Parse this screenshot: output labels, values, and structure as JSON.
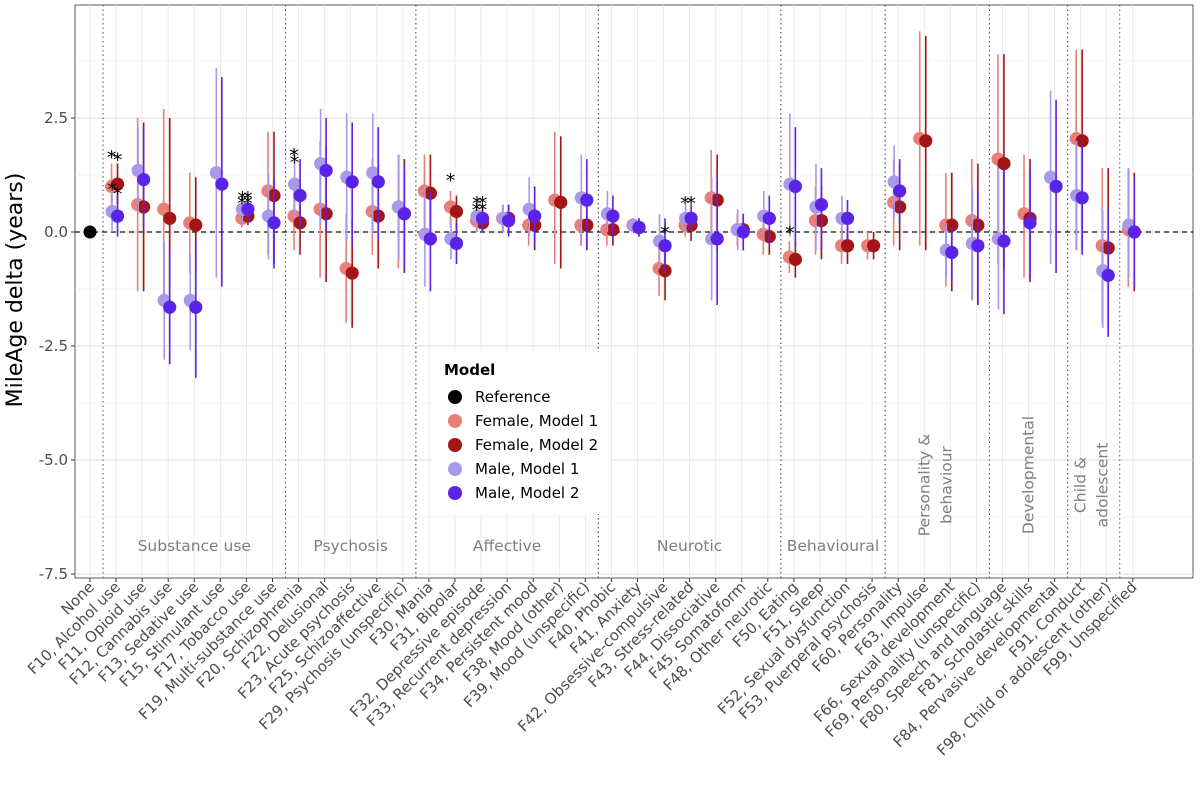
{
  "chart_data": {
    "type": "scatter",
    "ylabel": "MileAge delta (years)",
    "xlabel": "",
    "ylim": [
      -7.6,
      5.0
    ],
    "yticks": [
      2.5,
      0.0,
      -2.5,
      -5.0,
      -7.5
    ],
    "ytick_labels": [
      "2.5",
      "0.0",
      "-2.5",
      "-5.0",
      "-7.5"
    ],
    "grid": true,
    "reference_line": 0,
    "categories": [
      "None",
      "F10, Alcohol use",
      "F11, Opioid use",
      "F12, Cannabis use",
      "F13, Sedative use",
      "F15, Stimulant use",
      "F17, Tobacco use",
      "F19, Multi-substance use",
      "F20, Schizophrenia",
      "F22, Delusional",
      "F23, Acute psychosis",
      "F25, Schizoaffective",
      "F29, Psychosis (unspecific)",
      "F30, Mania",
      "F31, Bipolar",
      "F32, Depressive episode",
      "F33, Recurrent depression",
      "F34, Persistent mood",
      "F38, Mood (other)",
      "F39, Mood (unspecific)",
      "F40, Phobic",
      "F41, Anxiety",
      "F42, Obsessive-compulsive",
      "F43, Stress-related",
      "F44, Dissociative",
      "F45, Somatoform",
      "F48, Other neurotic",
      "F50, Eating",
      "F51, Sleep",
      "F52, Sexual dysfunction",
      "F53, Puerperal psychosis",
      "F60, Personality",
      "F63, Impulse",
      "F66, Sexual development",
      "F69, Personality (unspecific)",
      "F80, Speech and language",
      "F81, Scholastic skills",
      "F84, Pervasive developmental",
      "F91, Conduct",
      "F98, Child or adolescent (other)",
      "F99, Unspecified"
    ],
    "groups": [
      {
        "label": "Substance use",
        "start": 1,
        "end": 7
      },
      {
        "label": "Psychosis",
        "start": 8,
        "end": 12
      },
      {
        "label": "Affective",
        "start": 13,
        "end": 19
      },
      {
        "label": "Neurotic",
        "start": 20,
        "end": 26
      },
      {
        "label": "Behavioural",
        "start": 27,
        "end": 30
      },
      {
        "label": "Personality & behaviour",
        "start": 31,
        "end": 34
      },
      {
        "label": "Developmental",
        "start": 35,
        "end": 37
      },
      {
        "label": "Child & adolescent",
        "start": 38,
        "end": 39
      }
    ],
    "reference": {
      "name": "Reference",
      "category": 0,
      "value": 0.0,
      "color": "#000000"
    },
    "series": [
      {
        "name": "Female, Model 1",
        "color": "#e8807a",
        "values": [
          null,
          1.0,
          0.6,
          0.5,
          0.2,
          null,
          0.3,
          0.9,
          0.35,
          0.5,
          -0.8,
          0.45,
          0.55,
          0.9,
          0.55,
          0.25,
          0.3,
          0.15,
          0.7,
          0.15,
          0.05,
          0.15,
          -0.8,
          0.15,
          0.75,
          0.05,
          -0.05,
          -0.55,
          0.25,
          -0.3,
          -0.3,
          0.65,
          2.05,
          0.15,
          0.25,
          1.6,
          0.4,
          null,
          2.05,
          -0.3,
          0.05
        ],
        "lower": [
          null,
          0.5,
          -1.3,
          -1.6,
          -0.9,
          null,
          0.1,
          -0.5,
          -0.4,
          -1.0,
          -2.0,
          -0.5,
          -0.8,
          0.1,
          0.1,
          0.0,
          0.0,
          -0.3,
          -0.7,
          -0.3,
          -0.3,
          0.0,
          -1.4,
          -0.1,
          -0.3,
          -0.3,
          -0.5,
          -0.9,
          -0.5,
          -0.7,
          -0.6,
          -0.3,
          -0.3,
          -1.2,
          -1.5,
          -0.7,
          -1.0,
          null,
          -0.4,
          -2.0,
          -1.2
        ],
        "upper": [
          null,
          1.5,
          2.5,
          2.7,
          1.3,
          null,
          0.6,
          2.2,
          1.0,
          2.0,
          0.4,
          1.6,
          1.7,
          1.7,
          0.9,
          0.5,
          0.6,
          0.6,
          2.2,
          0.6,
          0.4,
          0.3,
          -0.2,
          0.4,
          1.8,
          0.4,
          0.4,
          -0.2,
          1.0,
          0.1,
          0.0,
          1.6,
          4.4,
          1.3,
          1.6,
          3.9,
          1.7,
          null,
          4.0,
          1.4,
          1.4
        ]
      },
      {
        "name": "Female, Model 2",
        "color": "#a41515",
        "values": [
          null,
          1.05,
          0.55,
          0.3,
          0.15,
          null,
          0.35,
          0.8,
          0.2,
          0.4,
          -0.9,
          0.35,
          0.4,
          0.85,
          0.45,
          0.2,
          0.3,
          0.15,
          0.65,
          0.15,
          0.05,
          0.1,
          -0.85,
          0.15,
          0.7,
          0.05,
          -0.1,
          -0.6,
          0.25,
          -0.3,
          -0.3,
          0.55,
          2.0,
          0.15,
          0.15,
          1.5,
          0.3,
          null,
          2.0,
          -0.35,
          0.0
        ],
        "lower": [
          null,
          0.6,
          -1.3,
          -1.7,
          -0.9,
          null,
          0.15,
          -0.7,
          -0.5,
          -1.1,
          -2.1,
          -0.8,
          -0.9,
          0.0,
          0.0,
          0.0,
          0.0,
          -0.4,
          -0.8,
          -0.4,
          -0.3,
          -0.1,
          -1.5,
          -0.2,
          -0.4,
          -0.4,
          -0.5,
          -1.0,
          -0.6,
          -0.7,
          -0.6,
          -0.4,
          -0.4,
          -1.3,
          -1.6,
          -0.8,
          -1.1,
          null,
          -0.4,
          -2.1,
          -1.3
        ],
        "upper": [
          null,
          1.5,
          2.4,
          2.5,
          1.2,
          null,
          0.6,
          2.2,
          0.9,
          1.9,
          0.3,
          1.5,
          1.6,
          1.7,
          0.8,
          0.45,
          0.6,
          0.6,
          2.1,
          0.6,
          0.4,
          0.3,
          -0.2,
          0.4,
          1.7,
          0.4,
          0.3,
          -0.2,
          1.0,
          0.1,
          0.0,
          1.5,
          4.3,
          1.3,
          1.5,
          3.9,
          1.6,
          null,
          4.0,
          1.4,
          1.3
        ]
      },
      {
        "name": "Male, Model 1",
        "color": "#a99ae9",
        "values": [
          null,
          0.45,
          1.35,
          -1.5,
          -1.5,
          1.3,
          0.5,
          0.35,
          1.05,
          1.5,
          1.2,
          1.3,
          0.55,
          -0.05,
          -0.15,
          0.35,
          0.3,
          0.5,
          null,
          0.75,
          0.4,
          0.15,
          -0.2,
          0.3,
          -0.15,
          0.05,
          0.35,
          1.05,
          0.55,
          0.3,
          null,
          1.1,
          null,
          -0.4,
          -0.25,
          -0.15,
          null,
          1.2,
          0.8,
          -0.85,
          0.15
        ],
        "lower": [
          null,
          0.0,
          0.4,
          -2.8,
          -2.6,
          -1.0,
          0.2,
          -0.6,
          0.3,
          0.2,
          -0.2,
          0.0,
          -0.6,
          -1.2,
          -0.6,
          0.0,
          0.0,
          -0.1,
          null,
          -0.3,
          0.0,
          0.0,
          -0.8,
          0.0,
          -1.5,
          -0.4,
          -0.2,
          -0.1,
          -0.4,
          -0.2,
          null,
          0.3,
          null,
          -1.0,
          -1.5,
          -1.7,
          null,
          -0.7,
          -0.4,
          -2.1,
          -1.0
        ],
        "upper": [
          null,
          0.9,
          2.3,
          -0.2,
          -0.5,
          3.6,
          0.8,
          1.3,
          1.8,
          2.7,
          2.6,
          2.6,
          1.7,
          1.0,
          0.3,
          0.7,
          0.6,
          1.2,
          null,
          1.7,
          0.9,
          0.3,
          0.4,
          0.6,
          1.2,
          0.5,
          0.9,
          2.6,
          1.5,
          0.8,
          null,
          1.9,
          null,
          0.2,
          1.0,
          1.4,
          null,
          3.1,
          2.0,
          0.5,
          1.4
        ]
      },
      {
        "name": "Male, Model 2",
        "color": "#5b23e8",
        "values": [
          null,
          0.35,
          1.15,
          -1.65,
          -1.65,
          1.05,
          0.5,
          0.2,
          0.8,
          1.35,
          1.1,
          1.1,
          0.4,
          -0.15,
          -0.25,
          0.3,
          0.25,
          0.35,
          null,
          0.7,
          0.35,
          0.1,
          -0.3,
          0.3,
          -0.15,
          0.0,
          0.3,
          1.0,
          0.6,
          0.3,
          null,
          0.9,
          null,
          -0.45,
          -0.3,
          -0.2,
          0.2,
          1.0,
          0.75,
          -0.95,
          0.0
        ],
        "lower": [
          null,
          -0.1,
          0.1,
          -2.9,
          -3.2,
          -1.2,
          0.2,
          -0.8,
          0.1,
          0.0,
          -0.3,
          -0.2,
          -0.8,
          -1.3,
          -0.7,
          0.0,
          -0.1,
          -0.3,
          null,
          -0.4,
          -0.1,
          -0.1,
          -0.9,
          0.0,
          -1.6,
          -0.4,
          -0.3,
          -0.3,
          -0.4,
          -0.2,
          null,
          0.2,
          null,
          -1.1,
          -1.6,
          -1.8,
          -1.0,
          -0.9,
          -0.5,
          -2.3,
          -1.2
        ],
        "upper": [
          null,
          0.8,
          2.3,
          -0.4,
          -0.2,
          3.4,
          0.8,
          1.2,
          1.6,
          2.5,
          2.4,
          2.3,
          1.5,
          0.9,
          0.2,
          0.6,
          0.6,
          1.0,
          null,
          1.6,
          0.8,
          0.3,
          0.3,
          0.6,
          1.3,
          0.4,
          0.8,
          2.3,
          1.4,
          0.7,
          null,
          1.6,
          null,
          0.1,
          0.9,
          1.4,
          1.4,
          2.9,
          1.9,
          0.5,
          1.2
        ]
      }
    ],
    "annotations": [
      {
        "text": "*",
        "category": 1,
        "series": 0,
        "y": 1.75
      },
      {
        "text": "*",
        "category": 1,
        "series": 1,
        "y": 1.7
      },
      {
        "text": "*",
        "category": 1,
        "series": 2,
        "y": 1.05
      },
      {
        "text": "*",
        "category": 1,
        "series": 3,
        "y": 0.95
      },
      {
        "text": "*",
        "category": 6,
        "series": 0,
        "y": 0.75
      },
      {
        "text": "*",
        "category": 6,
        "series": 1,
        "y": 0.85
      },
      {
        "text": "*",
        "category": 6,
        "series": 2,
        "y": 0.85
      },
      {
        "text": "*",
        "category": 6,
        "series": 3,
        "y": 0.75
      },
      {
        "text": "*",
        "category": 8,
        "series": 0,
        "y": 1.8
      },
      {
        "text": "*",
        "category": 8,
        "series": 2,
        "y": 1.65
      },
      {
        "text": "*",
        "category": 14,
        "series": 0,
        "y": 1.25
      },
      {
        "text": "*",
        "category": 15,
        "series": 0,
        "y": 0.6
      },
      {
        "text": "*",
        "category": 15,
        "series": 1,
        "y": 0.75
      },
      {
        "text": "*",
        "category": 15,
        "series": 2,
        "y": 0.75
      },
      {
        "text": "*",
        "category": 15,
        "series": 3,
        "y": 0.6
      },
      {
        "text": "*",
        "category": 22,
        "series": 3,
        "y": 0.1
      },
      {
        "text": "*",
        "category": 23,
        "series": 0,
        "y": 0.75
      },
      {
        "text": "*",
        "category": 23,
        "series": 3,
        "y": 0.75
      },
      {
        "text": "*",
        "category": 27,
        "series": 2,
        "y": 0.1
      }
    ],
    "legend": {
      "title": "Model",
      "position": "center",
      "entries": [
        "Reference",
        "Female, Model 1",
        "Female, Model 2",
        "Male, Model 1",
        "Male, Model 2"
      ]
    }
  }
}
